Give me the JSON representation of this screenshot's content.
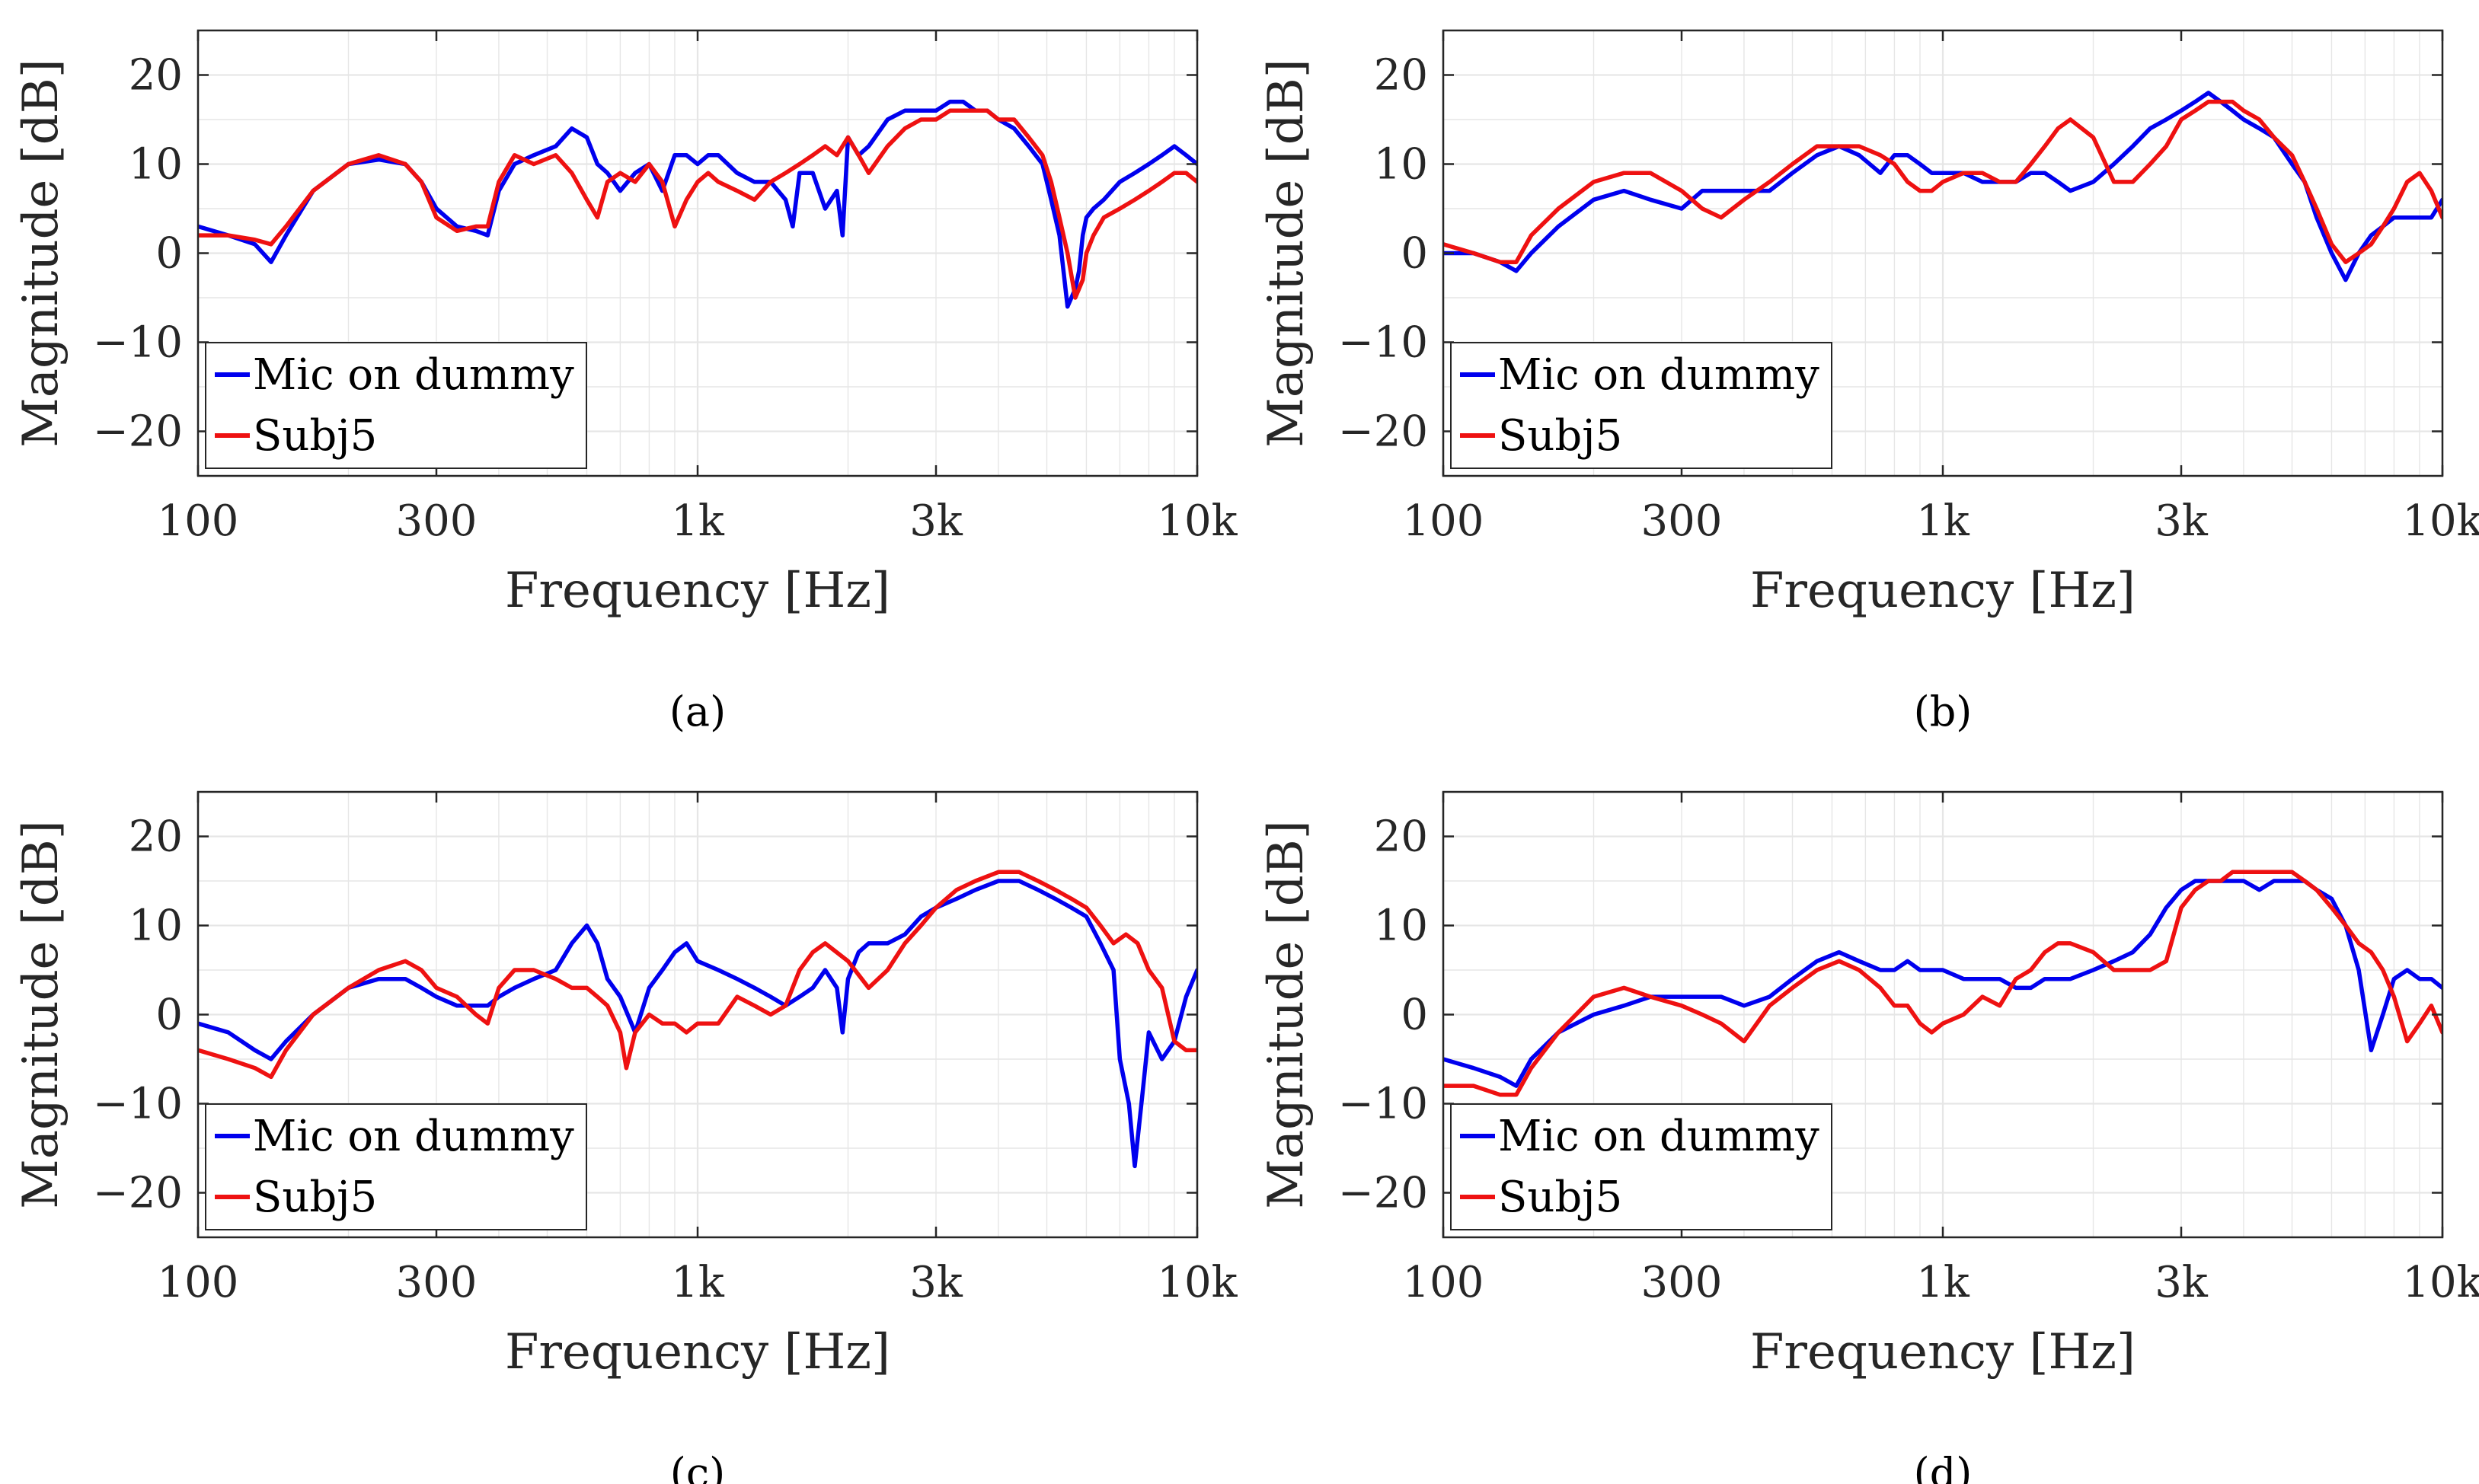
{
  "figure": {
    "xlabel": "Frequency [Hz]",
    "ylabel": "Magnitude [dB]",
    "xticks": [
      {
        "v": 100,
        "label": "100"
      },
      {
        "v": 300,
        "label": "300"
      },
      {
        "v": 1000,
        "label": "1k"
      },
      {
        "v": 3000,
        "label": "3k"
      },
      {
        "v": 10000,
        "label": "10k"
      }
    ],
    "yticks": [
      {
        "v": 20,
        "label": "20"
      },
      {
        "v": 10,
        "label": "10"
      },
      {
        "v": 0,
        "label": "0"
      },
      {
        "v": -10,
        "label": "−10"
      },
      {
        "v": -20,
        "label": "−20"
      }
    ],
    "colors": {
      "blue": "#0000ee",
      "red": "#ee1111",
      "grid": "#e6e6e6",
      "axis": "#262626"
    }
  },
  "chart_data": [
    {
      "type": "line",
      "caption": "(a)",
      "xscale": "log",
      "xlim": [
        100,
        10000
      ],
      "ylim": [
        -25,
        25
      ],
      "grid": true,
      "legend": "bottom-left",
      "series": [
        {
          "name": "Mic on dummy",
          "color": "#0000ee",
          "x": [
            100,
            115,
            130,
            140,
            150,
            170,
            200,
            230,
            260,
            280,
            300,
            330,
            360,
            380,
            400,
            430,
            470,
            520,
            560,
            600,
            630,
            660,
            700,
            750,
            800,
            850,
            900,
            950,
            1000,
            1050,
            1100,
            1200,
            1300,
            1400,
            1500,
            1550,
            1600,
            1700,
            1800,
            1900,
            1950,
            2000,
            2100,
            2200,
            2400,
            2600,
            2800,
            3000,
            3200,
            3400,
            3600,
            3800,
            4000,
            4300,
            4600,
            4900,
            5100,
            5300,
            5500,
            5700,
            5800,
            5900,
            6000,
            6200,
            6500,
            7000,
            7500,
            8000,
            8500,
            9000,
            9500,
            10000
          ],
          "y": [
            3,
            2,
            1,
            -1,
            2,
            7,
            10,
            10.5,
            10,
            8,
            5,
            3,
            2.5,
            2,
            7,
            10,
            11,
            12,
            14,
            13,
            10,
            9,
            7,
            9,
            10,
            7,
            11,
            11,
            10,
            11,
            11,
            9,
            8,
            8,
            6,
            3,
            9,
            9,
            5,
            7,
            2,
            13,
            11,
            12,
            15,
            16,
            16,
            16,
            17,
            17,
            16,
            16,
            15,
            14,
            12,
            10,
            6,
            2,
            -6,
            -4,
            -2,
            2,
            4,
            5,
            6,
            8,
            9,
            10,
            11,
            12,
            11,
            10
          ]
        },
        {
          "name": "Subj5",
          "color": "#ee1111",
          "x": [
            100,
            115,
            130,
            140,
            150,
            170,
            200,
            230,
            260,
            280,
            300,
            330,
            360,
            380,
            400,
            430,
            470,
            520,
            560,
            600,
            630,
            660,
            700,
            750,
            800,
            850,
            900,
            950,
            1000,
            1050,
            1100,
            1200,
            1300,
            1400,
            1500,
            1600,
            1700,
            1800,
            1900,
            2000,
            2100,
            2200,
            2400,
            2600,
            2800,
            3000,
            3200,
            3400,
            3600,
            3800,
            4000,
            4300,
            4600,
            4900,
            5100,
            5300,
            5500,
            5700,
            5900,
            6000,
            6200,
            6500,
            7000,
            7500,
            8000,
            8500,
            9000,
            9500,
            10000
          ],
          "y": [
            2,
            2,
            1.5,
            1,
            3,
            7,
            10,
            11,
            10,
            8,
            4,
            2.5,
            3,
            3,
            8,
            11,
            10,
            11,
            9,
            6,
            4,
            8,
            9,
            8,
            10,
            8,
            3,
            6,
            8,
            9,
            8,
            7,
            6,
            8,
            9,
            10,
            11,
            12,
            11,
            13,
            11,
            9,
            12,
            14,
            15,
            15,
            16,
            16,
            16,
            16,
            15,
            15,
            13,
            11,
            8,
            4,
            0,
            -5,
            -3,
            0,
            2,
            4,
            5,
            6,
            7,
            8,
            9,
            9,
            8
          ]
        }
      ]
    },
    {
      "type": "line",
      "caption": "(b)",
      "xscale": "log",
      "xlim": [
        100,
        10000
      ],
      "ylim": [
        -25,
        25
      ],
      "grid": true,
      "legend": "bottom-left",
      "series": [
        {
          "name": "Mic on dummy",
          "color": "#0000ee",
          "x": [
            100,
            115,
            130,
            140,
            150,
            170,
            200,
            230,
            260,
            300,
            330,
            360,
            400,
            450,
            500,
            560,
            620,
            680,
            750,
            800,
            850,
            900,
            950,
            1000,
            1100,
            1200,
            1300,
            1400,
            1500,
            1600,
            1700,
            1800,
            2000,
            2200,
            2400,
            2600,
            2800,
            3000,
            3200,
            3400,
            3600,
            3800,
            4000,
            4300,
            4600,
            5000,
            5300,
            5600,
            6000,
            6400,
            6800,
            7200,
            7600,
            8000,
            8500,
            9000,
            9500,
            10000
          ],
          "y": [
            0,
            0,
            -1,
            -2,
            0,
            3,
            6,
            7,
            6,
            5,
            7,
            7,
            7,
            7,
            9,
            11,
            12,
            11,
            9,
            11,
            11,
            10,
            9,
            9,
            9,
            8,
            8,
            8,
            9,
            9,
            8,
            7,
            8,
            10,
            12,
            14,
            15,
            16,
            17,
            18,
            17,
            16,
            15,
            14,
            13,
            10,
            8,
            4,
            0,
            -3,
            0,
            2,
            3,
            4,
            4,
            4,
            4,
            6
          ]
        },
        {
          "name": "Subj5",
          "color": "#ee1111",
          "x": [
            100,
            115,
            130,
            140,
            150,
            170,
            200,
            230,
            260,
            300,
            330,
            360,
            400,
            450,
            500,
            560,
            620,
            680,
            750,
            800,
            850,
            900,
            950,
            1000,
            1100,
            1200,
            1300,
            1400,
            1500,
            1600,
            1700,
            1800,
            2000,
            2200,
            2400,
            2600,
            2800,
            3000,
            3200,
            3400,
            3600,
            3800,
            4000,
            4300,
            4600,
            5000,
            5300,
            5600,
            6000,
            6400,
            6800,
            7200,
            7600,
            8000,
            8500,
            9000,
            9500,
            10000
          ],
          "y": [
            1,
            0,
            -1,
            -1,
            2,
            5,
            8,
            9,
            9,
            7,
            5,
            4,
            6,
            8,
            10,
            12,
            12,
            12,
            11,
            10,
            8,
            7,
            7,
            8,
            9,
            9,
            8,
            8,
            10,
            12,
            14,
            15,
            13,
            8,
            8,
            10,
            12,
            15,
            16,
            17,
            17,
            17,
            16,
            15,
            13,
            11,
            8,
            5,
            1,
            -1,
            0,
            1,
            3,
            5,
            8,
            9,
            7,
            4
          ]
        }
      ]
    },
    {
      "type": "line",
      "caption": "(c)",
      "xscale": "log",
      "xlim": [
        100,
        10000
      ],
      "ylim": [
        -25,
        25
      ],
      "grid": true,
      "legend": "bottom-left",
      "series": [
        {
          "name": "Mic on dummy",
          "color": "#0000ee",
          "x": [
            100,
            115,
            130,
            140,
            150,
            170,
            200,
            230,
            260,
            280,
            300,
            330,
            360,
            380,
            400,
            430,
            470,
            520,
            560,
            600,
            630,
            660,
            700,
            750,
            800,
            850,
            900,
            950,
            1000,
            1100,
            1200,
            1300,
            1400,
            1500,
            1600,
            1700,
            1800,
            1900,
            1950,
            2000,
            2100,
            2200,
            2400,
            2600,
            2800,
            3000,
            3300,
            3600,
            4000,
            4400,
            4800,
            5200,
            5600,
            6000,
            6400,
            6800,
            7000,
            7300,
            7500,
            7800,
            8000,
            8500,
            9000,
            9500,
            10000
          ],
          "y": [
            -1,
            -2,
            -4,
            -5,
            -3,
            0,
            3,
            4,
            4,
            3,
            2,
            1,
            1,
            1,
            2,
            3,
            4,
            5,
            8,
            10,
            8,
            4,
            2,
            -2,
            3,
            5,
            7,
            8,
            6,
            5,
            4,
            3,
            2,
            1,
            2,
            3,
            5,
            3,
            -2,
            4,
            7,
            8,
            8,
            9,
            11,
            12,
            13,
            14,
            15,
            15,
            14,
            13,
            12,
            11,
            8,
            5,
            -5,
            -10,
            -17,
            -8,
            -2,
            -5,
            -3,
            2,
            5
          ]
        },
        {
          "name": "Subj5",
          "color": "#ee1111",
          "x": [
            100,
            115,
            130,
            140,
            150,
            170,
            200,
            230,
            260,
            280,
            300,
            330,
            360,
            380,
            400,
            430,
            470,
            520,
            560,
            600,
            630,
            660,
            700,
            720,
            750,
            800,
            850,
            900,
            950,
            1000,
            1100,
            1200,
            1300,
            1400,
            1500,
            1600,
            1700,
            1800,
            2000,
            2200,
            2400,
            2600,
            2800,
            3000,
            3300,
            3600,
            4000,
            4400,
            4800,
            5200,
            5600,
            6000,
            6400,
            6800,
            7200,
            7600,
            8000,
            8500,
            9000,
            9500,
            10000
          ],
          "y": [
            -4,
            -5,
            -6,
            -7,
            -4,
            0,
            3,
            5,
            6,
            5,
            3,
            2,
            0,
            -1,
            3,
            5,
            5,
            4,
            3,
            3,
            2,
            1,
            -2,
            -6,
            -2,
            0,
            -1,
            -1,
            -2,
            -1,
            -1,
            2,
            1,
            0,
            1,
            5,
            7,
            8,
            6,
            3,
            5,
            8,
            10,
            12,
            14,
            15,
            16,
            16,
            15,
            14,
            13,
            12,
            10,
            8,
            9,
            8,
            5,
            3,
            -3,
            -4,
            -4
          ]
        }
      ]
    },
    {
      "type": "line",
      "caption": "(d)",
      "xscale": "log",
      "xlim": [
        100,
        10000
      ],
      "ylim": [
        -25,
        25
      ],
      "grid": true,
      "legend": "bottom-left",
      "series": [
        {
          "name": "Mic on dummy",
          "color": "#0000ee",
          "x": [
            100,
            115,
            130,
            140,
            150,
            170,
            200,
            230,
            260,
            300,
            330,
            360,
            400,
            450,
            500,
            560,
            620,
            680,
            750,
            800,
            850,
            900,
            950,
            1000,
            1100,
            1200,
            1300,
            1400,
            1500,
            1600,
            1700,
            1800,
            2000,
            2200,
            2400,
            2600,
            2800,
            3000,
            3200,
            3400,
            3600,
            3800,
            4000,
            4300,
            4600,
            5000,
            5300,
            5600,
            6000,
            6400,
            6800,
            7200,
            7600,
            8000,
            8500,
            9000,
            9500,
            10000
          ],
          "y": [
            -5,
            -6,
            -7,
            -8,
            -5,
            -2,
            0,
            1,
            2,
            2,
            2,
            2,
            1,
            2,
            4,
            6,
            7,
            6,
            5,
            5,
            6,
            5,
            5,
            5,
            4,
            4,
            4,
            3,
            3,
            4,
            4,
            4,
            5,
            6,
            7,
            9,
            12,
            14,
            15,
            15,
            15,
            15,
            15,
            14,
            15,
            15,
            15,
            14,
            13,
            10,
            5,
            -4,
            0,
            4,
            5,
            4,
            4,
            3
          ]
        },
        {
          "name": "Subj5",
          "color": "#ee1111",
          "x": [
            100,
            115,
            130,
            140,
            150,
            170,
            200,
            230,
            260,
            300,
            330,
            360,
            400,
            450,
            500,
            560,
            620,
            680,
            750,
            800,
            850,
            900,
            950,
            1000,
            1100,
            1200,
            1300,
            1400,
            1500,
            1600,
            1700,
            1800,
            2000,
            2200,
            2400,
            2600,
            2800,
            3000,
            3200,
            3400,
            3600,
            3800,
            4000,
            4300,
            4600,
            5000,
            5300,
            5600,
            6000,
            6400,
            6800,
            7200,
            7600,
            8000,
            8500,
            9000,
            9500,
            10000
          ],
          "y": [
            -8,
            -8,
            -9,
            -9,
            -6,
            -2,
            2,
            3,
            2,
            1,
            0,
            -1,
            -3,
            1,
            3,
            5,
            6,
            5,
            3,
            1,
            1,
            -1,
            -2,
            -1,
            0,
            2,
            1,
            4,
            5,
            7,
            8,
            8,
            7,
            5,
            5,
            5,
            6,
            12,
            14,
            15,
            15,
            16,
            16,
            16,
            16,
            16,
            15,
            14,
            12,
            10,
            8,
            7,
            5,
            2,
            -3,
            -1,
            1,
            -2
          ]
        }
      ]
    }
  ]
}
